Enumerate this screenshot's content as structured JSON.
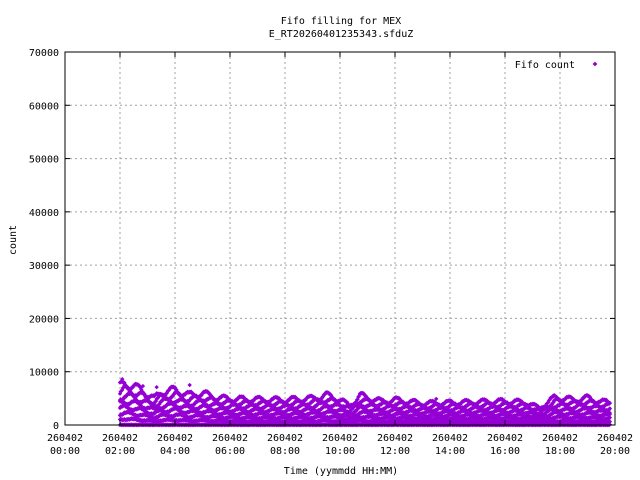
{
  "chart_data": {
    "type": "scatter",
    "title": "Fifo filling for MEX",
    "subtitle": "E_RT20260401235343.sfduZ",
    "xlabel": "Time (yymmdd HH:MM)",
    "ylabel": "count",
    "xlim": [
      "260402 00:00",
      "260402 20:00"
    ],
    "ylim": [
      0,
      70000
    ],
    "grid": true,
    "legend_position": "top-right",
    "point_color": "#9400d3",
    "x_ticks": [
      {
        "date": "260402",
        "time": "00:00"
      },
      {
        "date": "260402",
        "time": "02:00"
      },
      {
        "date": "260402",
        "time": "04:00"
      },
      {
        "date": "260402",
        "time": "06:00"
      },
      {
        "date": "260402",
        "time": "08:00"
      },
      {
        "date": "260402",
        "time": "10:00"
      },
      {
        "date": "260402",
        "time": "12:00"
      },
      {
        "date": "260402",
        "time": "14:00"
      },
      {
        "date": "260402",
        "time": "16:00"
      },
      {
        "date": "260402",
        "time": "18:00"
      },
      {
        "date": "260402",
        "time": "20:00"
      }
    ],
    "y_ticks": [
      "0",
      "10000",
      "20000",
      "30000",
      "40000",
      "50000",
      "60000",
      "70000"
    ],
    "series": [
      {
        "name": "Fifo count",
        "description_envelope": "upper envelope of the repeating fill/drain sawtooth",
        "envelope": [
          {
            "x": "260402 02:00",
            "y": 8000
          },
          {
            "x": "260402 02:10",
            "y": 8600
          },
          {
            "x": "260402 02:30",
            "y": 8100
          },
          {
            "x": "260402 02:50",
            "y": 7000
          },
          {
            "x": "260402 03:15",
            "y": 5500
          },
          {
            "x": "260402 03:30",
            "y": 6800
          },
          {
            "x": "260402 04:00",
            "y": 7300
          },
          {
            "x": "260402 04:30",
            "y": 6200
          },
          {
            "x": "260402 05:00",
            "y": 6600
          },
          {
            "x": "260402 05:30",
            "y": 5700
          },
          {
            "x": "260402 06:00",
            "y": 5400
          },
          {
            "x": "260402 07:00",
            "y": 5300
          },
          {
            "x": "260402 08:00",
            "y": 5200
          },
          {
            "x": "260402 09:00",
            "y": 5500
          },
          {
            "x": "260402 09:30",
            "y": 6200
          },
          {
            "x": "260402 10:00",
            "y": 5300
          },
          {
            "x": "260402 10:20",
            "y": 4000
          },
          {
            "x": "260402 10:45",
            "y": 6100
          },
          {
            "x": "260402 11:30",
            "y": 4900
          },
          {
            "x": "260402 12:00",
            "y": 5200
          },
          {
            "x": "260402 13:00",
            "y": 4500
          },
          {
            "x": "260402 14:00",
            "y": 4600
          },
          {
            "x": "260402 15:00",
            "y": 4800
          },
          {
            "x": "260402 16:00",
            "y": 4900
          },
          {
            "x": "260402 16:45",
            "y": 4700
          },
          {
            "x": "260402 17:15",
            "y": 3500
          },
          {
            "x": "260402 17:50",
            "y": 5800
          },
          {
            "x": "260402 18:30",
            "y": 5200
          },
          {
            "x": "260402 19:00",
            "y": 5600
          },
          {
            "x": "260402 19:30",
            "y": 4800
          },
          {
            "x": "260402 19:50",
            "y": 4700
          }
        ]
      }
    ]
  }
}
